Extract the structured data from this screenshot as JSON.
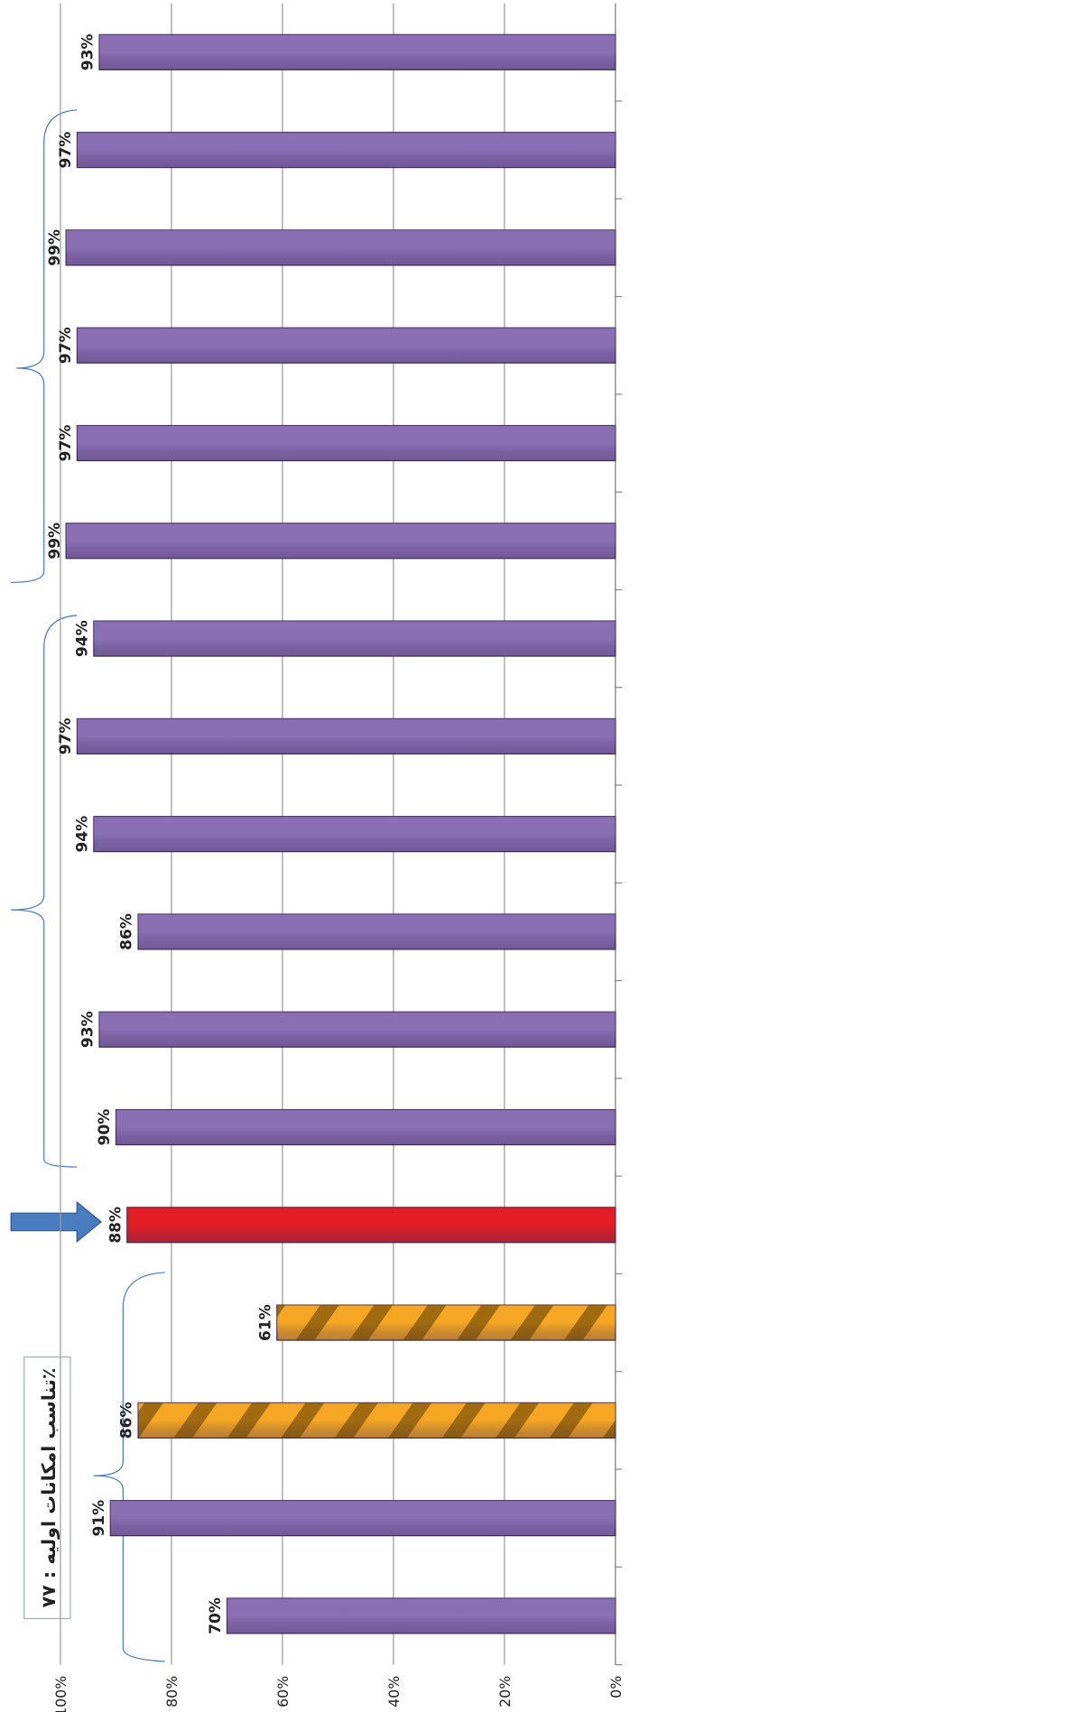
{
  "chart_data": {
    "type": "bar",
    "orientation": "horizontal",
    "annotation": "تناسب امکانات اولیه : ۷۷٪",
    "categories": [
      null,
      null,
      null,
      null,
      null,
      null,
      null,
      null,
      null,
      null,
      null,
      null,
      null,
      null,
      null,
      null,
      null
    ],
    "values": [
      93,
      97,
      99,
      97,
      97,
      99,
      94,
      97,
      94,
      86,
      93,
      90,
      88,
      61,
      86,
      91,
      70
    ],
    "value_labels": [
      "93%",
      "97%",
      "99%",
      "97%",
      "97%",
      "99%",
      "94%",
      "97%",
      "94%",
      "86%",
      "93%",
      "90%",
      "88%",
      "61%",
      "86%",
      "91%",
      "70%"
    ],
    "colors": [
      "#8b6fb5",
      "#8b6fb5",
      "#8b6fb5",
      "#8b6fb5",
      "#8b6fb5",
      "#8b6fb5",
      "#8b6fb5",
      "#8b6fb5",
      "#8b6fb5",
      "#8b6fb5",
      "#8b6fb5",
      "#8b6fb5",
      "#e41e26",
      "#f5a623",
      "#f5a623",
      "#8b6fb5",
      "#8b6fb5"
    ],
    "xlim": [
      0,
      100
    ],
    "xticks": [
      {
        "value": 0,
        "label": "0%"
      },
      {
        "value": 20,
        "label": "20%"
      },
      {
        "value": 40,
        "label": "40%"
      },
      {
        "value": 60,
        "label": "60%"
      },
      {
        "value": 80,
        "label": "80%"
      },
      {
        "value": 100,
        "label": "100%"
      }
    ],
    "grid": true
  }
}
